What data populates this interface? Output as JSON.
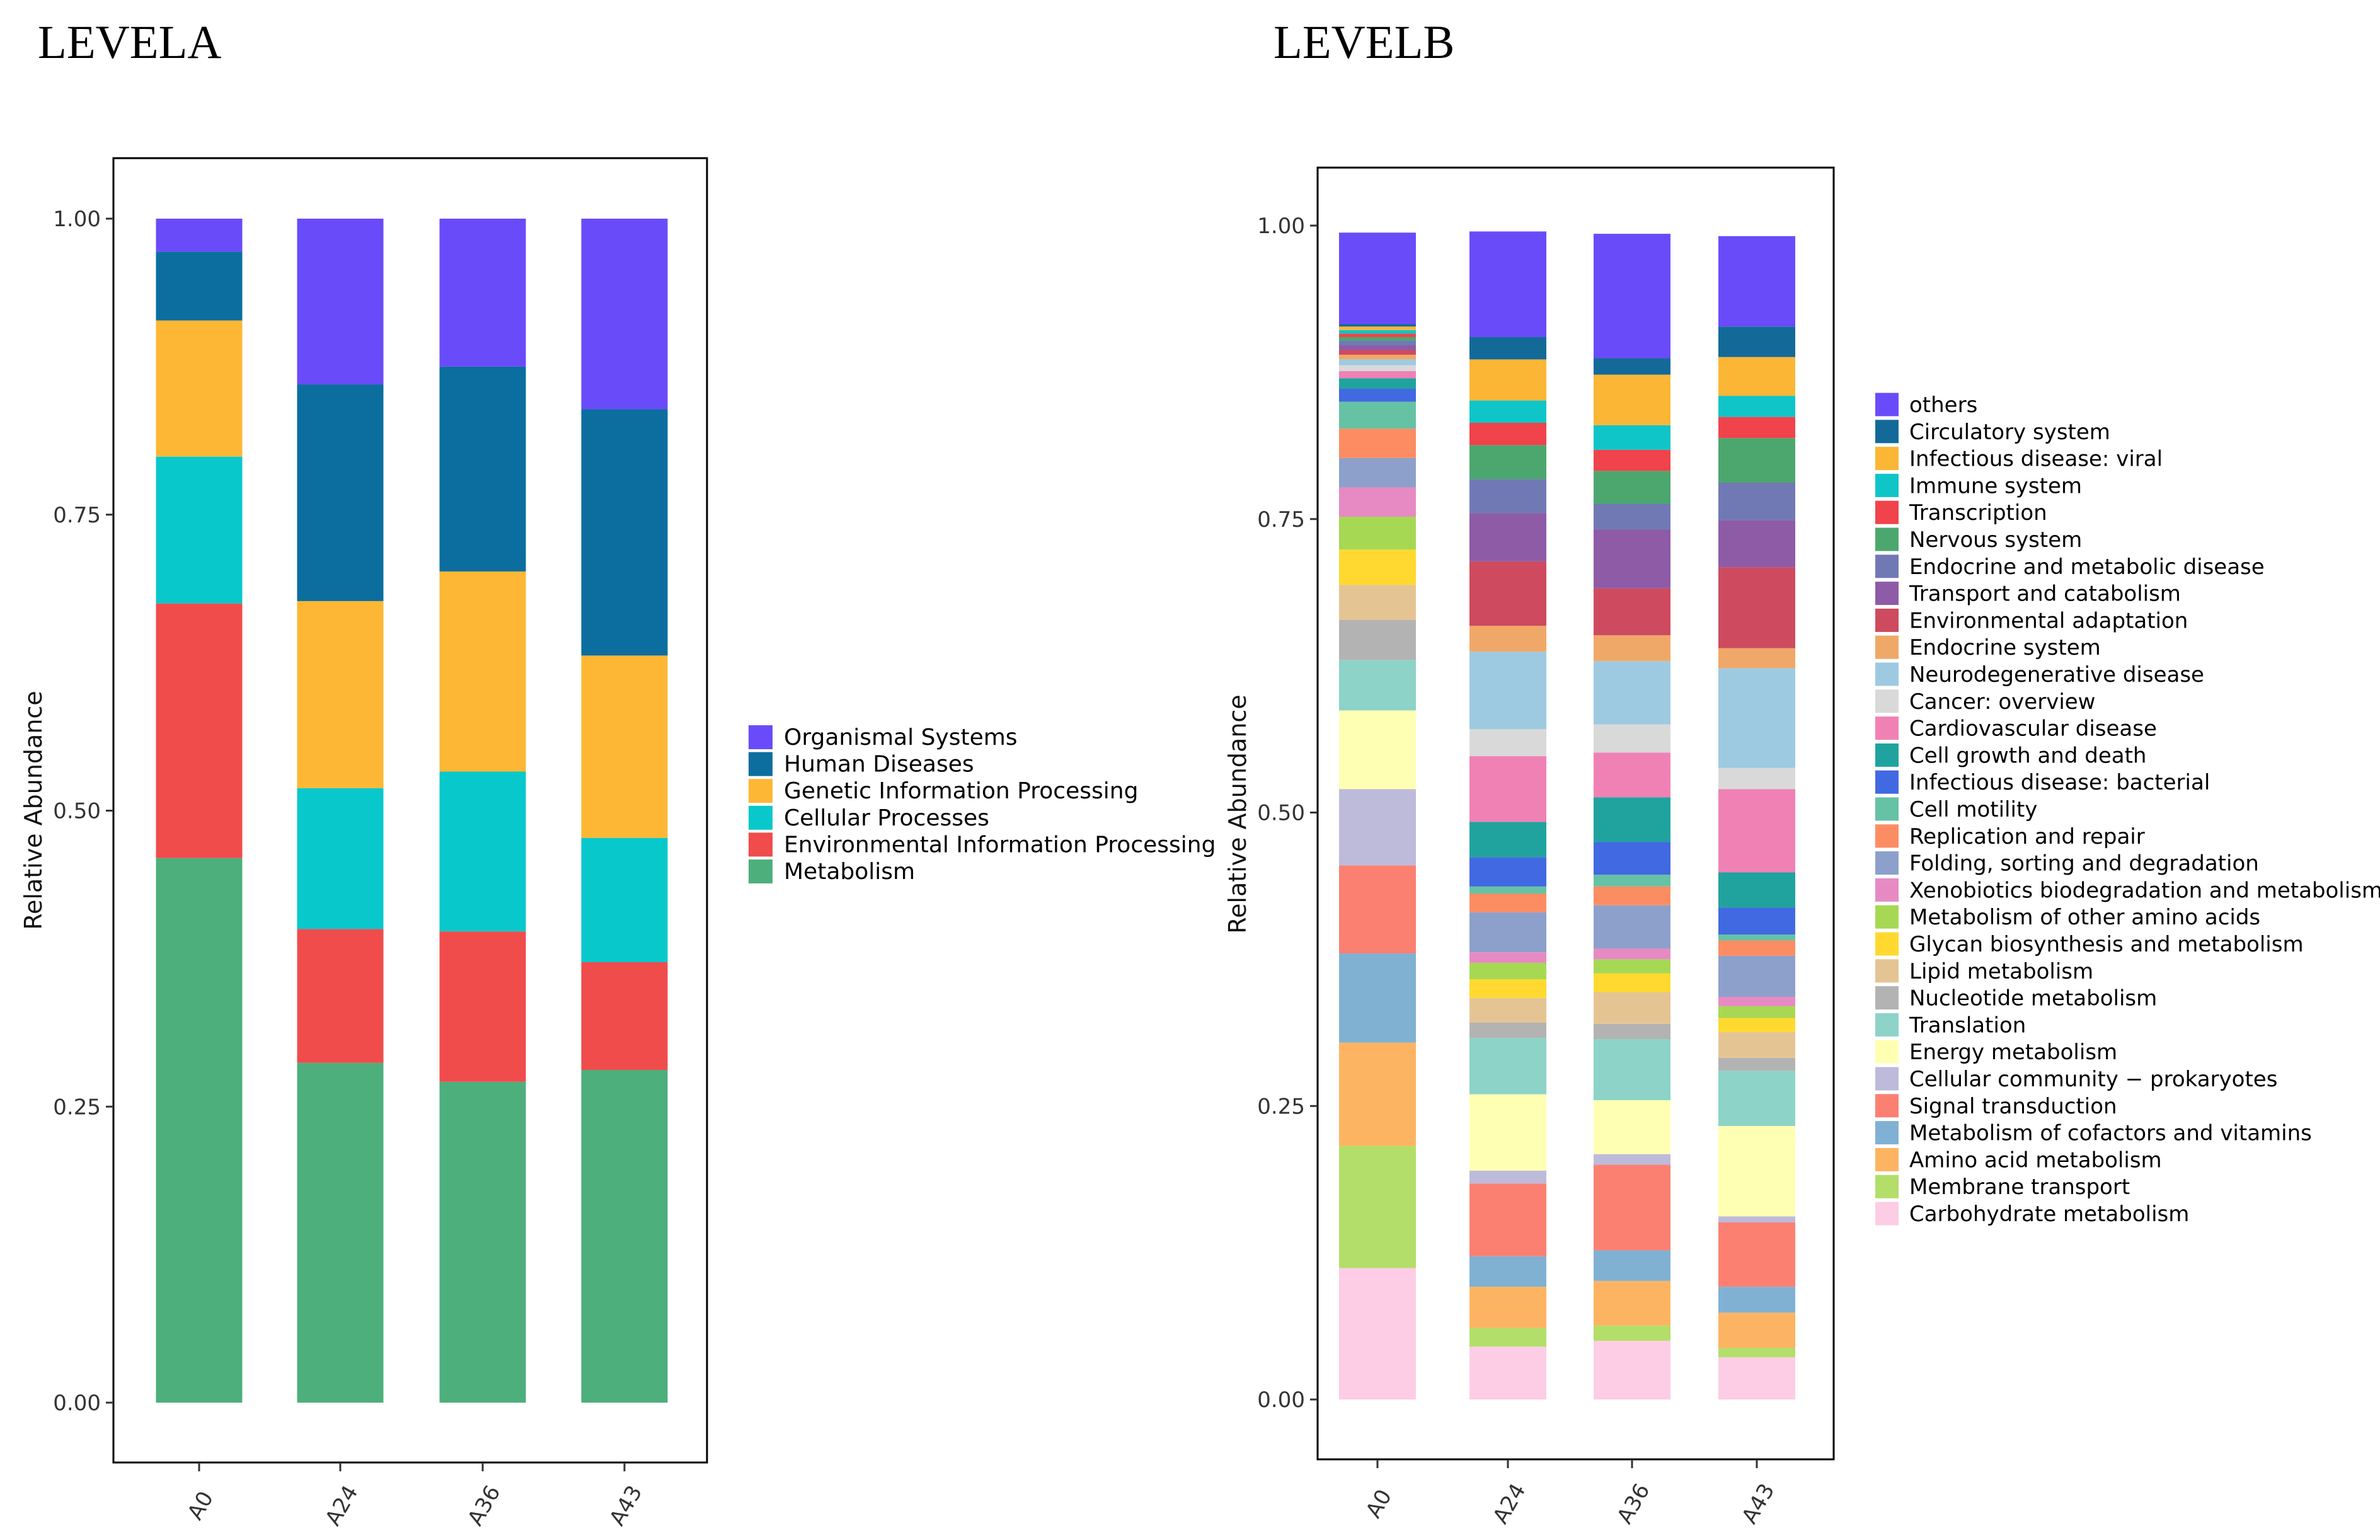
{
  "chart_data": [
    {
      "type": "bar",
      "stacked": true,
      "title": "LEVELA",
      "xlabel": "",
      "ylabel": "Relative Abundance",
      "ylim": [
        0,
        1
      ],
      "yticks": [
        "0.00",
        "0.25",
        "0.50",
        "0.75",
        "1.00"
      ],
      "categories": [
        "A0",
        "A24",
        "A36",
        "A43"
      ],
      "legend_position": "right",
      "series": [
        {
          "name": "Metabolism",
          "color": "#4DAF7C",
          "values": [
            0.46,
            0.287,
            0.271,
            0.281
          ]
        },
        {
          "name": "Environmental Information Processing",
          "color": "#F04C4C",
          "values": [
            0.215,
            0.113,
            0.127,
            0.091
          ]
        },
        {
          "name": "Cellular Processes",
          "color": "#08C8CC",
          "values": [
            0.124,
            0.119,
            0.135,
            0.105
          ]
        },
        {
          "name": "Genetic Information Processing",
          "color": "#FDB734",
          "values": [
            0.115,
            0.158,
            0.169,
            0.154
          ]
        },
        {
          "name": "Human Diseases",
          "color": "#0B6E9F",
          "values": [
            0.058,
            0.183,
            0.173,
            0.208
          ]
        },
        {
          "name": "Organismal Systems",
          "color": "#6A4BFA",
          "values": [
            0.028,
            0.14,
            0.125,
            0.161
          ]
        }
      ]
    },
    {
      "type": "bar",
      "stacked": true,
      "title": "LEVELB",
      "xlabel": "",
      "ylabel": "Relative Abundance",
      "ylim": [
        0,
        1
      ],
      "yticks": [
        "0.00",
        "0.25",
        "0.50",
        "0.75",
        "1.00"
      ],
      "categories": [
        "A0",
        "A24",
        "A36",
        "A43"
      ],
      "legend_position": "right",
      "series": [
        {
          "name": "Carbohydrate metabolism",
          "color": "#FCCDE5",
          "values": [
            0.112,
            0.045,
            0.05,
            0.036
          ]
        },
        {
          "name": "Membrane transport",
          "color": "#B3DE69",
          "values": [
            0.104,
            0.016,
            0.013,
            0.008
          ]
        },
        {
          "name": "Amino acid metabolism",
          "color": "#FDB462",
          "values": [
            0.088,
            0.035,
            0.038,
            0.03
          ]
        },
        {
          "name": "Metabolism of cofactors and vitamins",
          "color": "#80B1D3",
          "values": [
            0.076,
            0.026,
            0.026,
            0.022
          ]
        },
        {
          "name": "Signal transduction",
          "color": "#FB8072",
          "values": [
            0.075,
            0.062,
            0.073,
            0.055
          ]
        },
        {
          "name": "Cellular community − prokaryotes",
          "color": "#BEBADA",
          "values": [
            0.065,
            0.011,
            0.009,
            0.005
          ]
        },
        {
          "name": "Energy metabolism",
          "color": "#FFFFB3",
          "values": [
            0.067,
            0.065,
            0.046,
            0.077
          ]
        },
        {
          "name": "Translation",
          "color": "#8DD3C7",
          "values": [
            0.043,
            0.048,
            0.052,
            0.047
          ]
        },
        {
          "name": "Nucleotide metabolism",
          "color": "#B3B3B3",
          "values": [
            0.034,
            0.013,
            0.013,
            0.011
          ]
        },
        {
          "name": "Lipid metabolism",
          "color": "#E5C494",
          "values": [
            0.03,
            0.021,
            0.027,
            0.022
          ]
        },
        {
          "name": "Glycan biosynthesis and metabolism",
          "color": "#FFD92F",
          "values": [
            0.03,
            0.016,
            0.016,
            0.012
          ]
        },
        {
          "name": "Metabolism of other amino acids",
          "color": "#A6D854",
          "values": [
            0.028,
            0.014,
            0.012,
            0.01
          ]
        },
        {
          "name": "Xenobiotics biodegradation and metabolism",
          "color": "#E78AC3",
          "values": [
            0.025,
            0.009,
            0.009,
            0.008
          ]
        },
        {
          "name": "Folding, sorting and degradation",
          "color": "#8DA0CB",
          "values": [
            0.025,
            0.034,
            0.037,
            0.035
          ]
        },
        {
          "name": "Replication and repair",
          "color": "#FC8D62",
          "values": [
            0.025,
            0.016,
            0.016,
            0.013
          ]
        },
        {
          "name": "Cell motility",
          "color": "#66C2A5",
          "values": [
            0.023,
            0.006,
            0.01,
            0.005
          ]
        },
        {
          "name": "Infectious disease: bacterial",
          "color": "#4169E1",
          "values": [
            0.011,
            0.025,
            0.028,
            0.023
          ]
        },
        {
          "name": "Cell growth and death",
          "color": "#20A39E",
          "values": [
            0.009,
            0.03,
            0.038,
            0.03
          ]
        },
        {
          "name": "Cardiovascular disease",
          "color": "#F081B5",
          "values": [
            0.006,
            0.056,
            0.038,
            0.071
          ]
        },
        {
          "name": "Cancer: overview",
          "color": "#D9D9D9",
          "values": [
            0.005,
            0.023,
            0.024,
            0.018
          ]
        },
        {
          "name": "Neurodegenerative disease",
          "color": "#9ECAE1",
          "values": [
            0.005,
            0.066,
            0.054,
            0.085
          ]
        },
        {
          "name": "Endocrine system",
          "color": "#F0A868",
          "values": [
            0.004,
            0.022,
            0.022,
            0.017
          ]
        },
        {
          "name": "Environmental adaptation",
          "color": "#CE4A5F",
          "values": [
            0.004,
            0.055,
            0.04,
            0.069
          ]
        },
        {
          "name": "Transport and catabolism",
          "color": "#8E5BA6",
          "values": [
            0.004,
            0.041,
            0.05,
            0.04
          ]
        },
        {
          "name": "Endocrine and metabolic disease",
          "color": "#7179B5",
          "values": [
            0.004,
            0.029,
            0.022,
            0.032
          ]
        },
        {
          "name": "Nervous system",
          "color": "#4CA76F",
          "values": [
            0.003,
            0.029,
            0.028,
            0.038
          ]
        },
        {
          "name": "Transcription",
          "color": "#F0434B",
          "values": [
            0.003,
            0.019,
            0.018,
            0.018
          ]
        },
        {
          "name": "Immune system",
          "color": "#10C5C8",
          "values": [
            0.003,
            0.019,
            0.021,
            0.018
          ]
        },
        {
          "name": "Infectious disease: viral",
          "color": "#FBB635",
          "values": [
            0.003,
            0.035,
            0.043,
            0.033
          ]
        },
        {
          "name": "Circulatory system",
          "color": "#136A98",
          "values": [
            0.002,
            0.019,
            0.014,
            0.026
          ]
        },
        {
          "name": "others",
          "color": "#6A4BFA",
          "values": [
            0.078,
            0.09,
            0.106,
            0.077
          ]
        }
      ]
    }
  ]
}
